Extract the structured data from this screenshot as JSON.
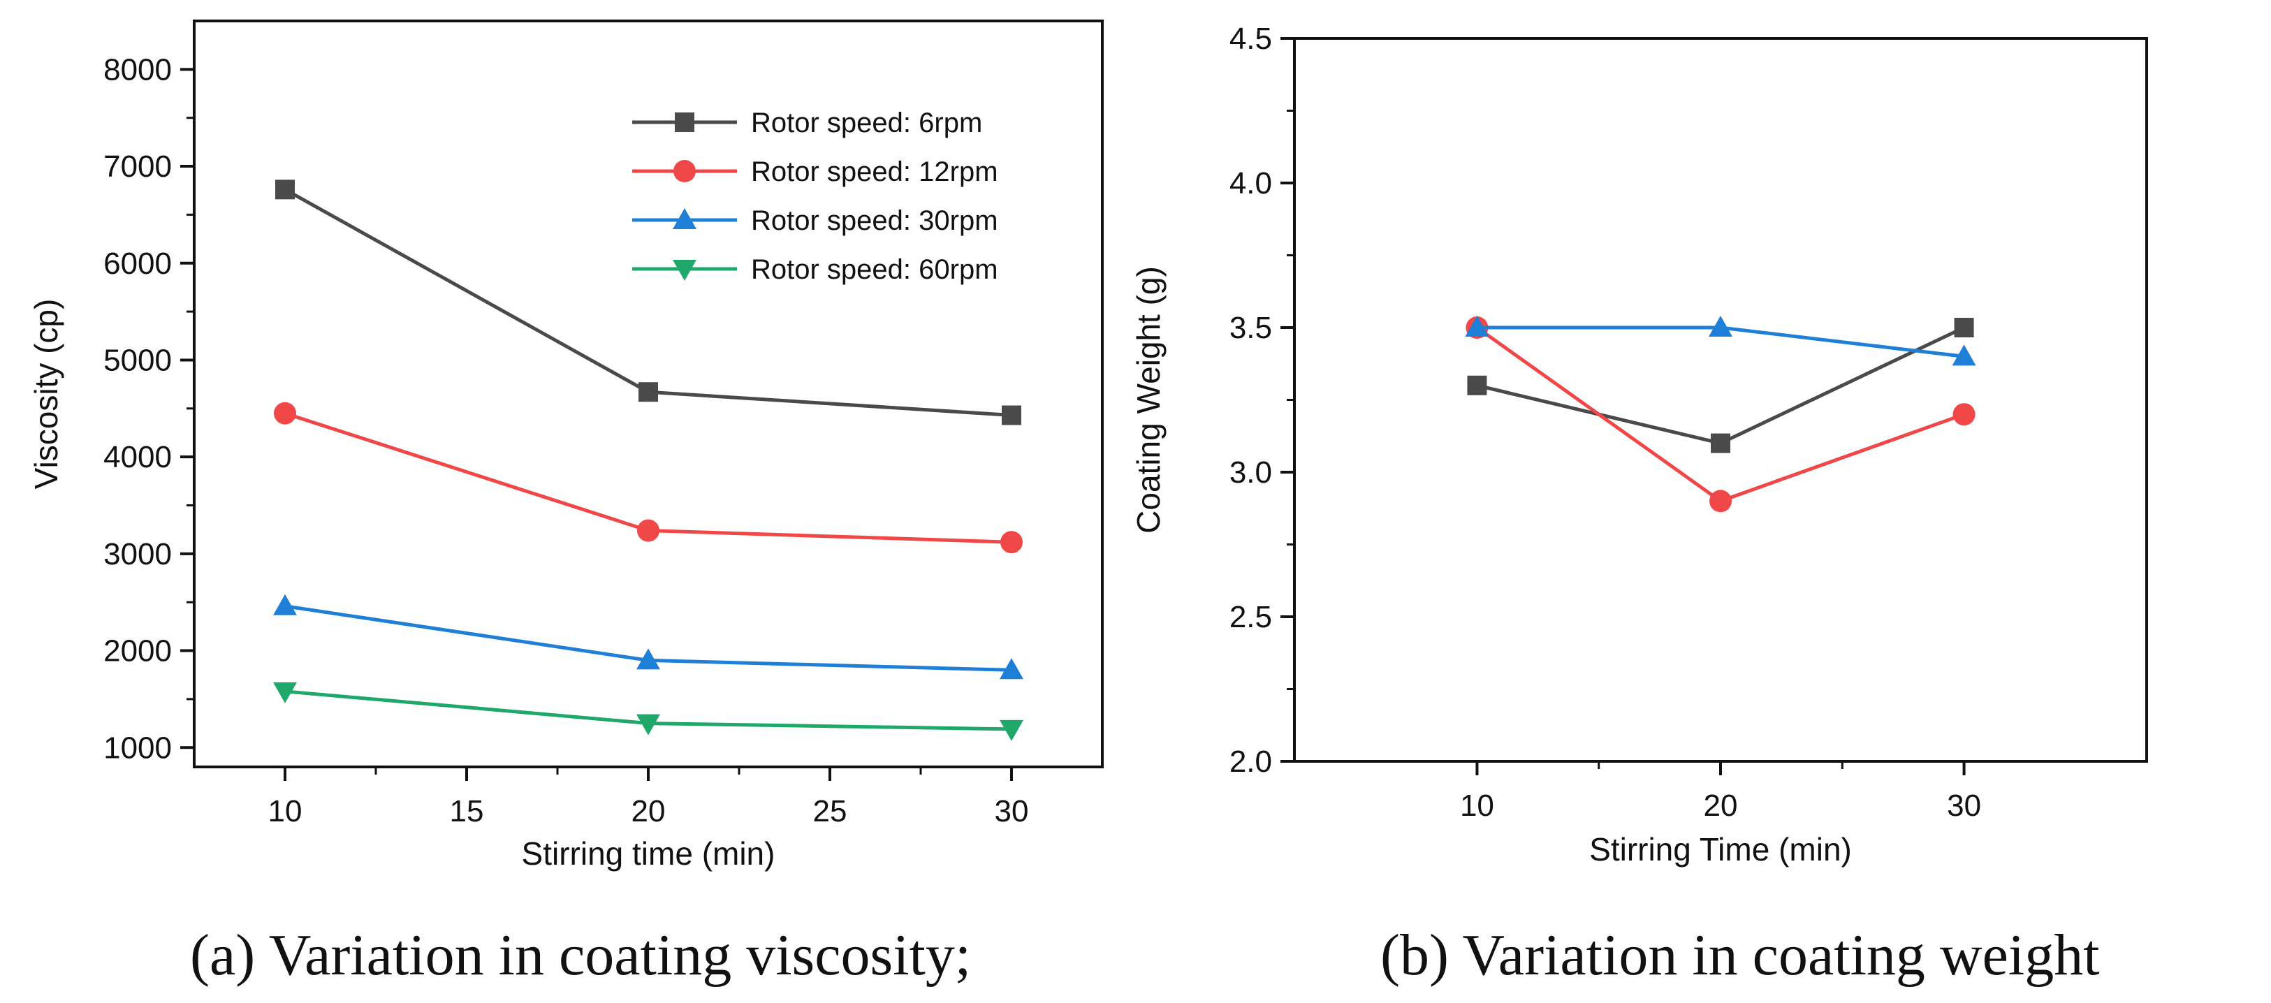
{
  "captions": {
    "a": "(a) Variation in coating viscosity;",
    "b": "(b) Variation in coating weight"
  },
  "chart_data": [
    {
      "id": "a",
      "type": "line",
      "title": "",
      "xlabel": "Stirring time (min)",
      "ylabel": "Viscosity (cp)",
      "xlim": [
        7.5,
        32.5
      ],
      "ylim": [
        800,
        8500
      ],
      "xticks": [
        10,
        15,
        20,
        25,
        30
      ],
      "yticks": [
        1000,
        2000,
        3000,
        4000,
        5000,
        6000,
        7000,
        8000
      ],
      "x": [
        10,
        20,
        30
      ],
      "legend_position": "top-right",
      "series": [
        {
          "name": "Rotor speed: 6rpm",
          "color": "#4a4a4a",
          "marker": "square",
          "values": [
            6760,
            4670,
            4430
          ]
        },
        {
          "name": "Rotor speed: 12rpm",
          "color": "#f04848",
          "marker": "circle",
          "values": [
            4450,
            3240,
            3120
          ]
        },
        {
          "name": "Rotor speed: 30rpm",
          "color": "#1f7fd6",
          "marker": "triangle-up",
          "values": [
            2460,
            1900,
            1800
          ]
        },
        {
          "name": "Rotor speed: 60rpm",
          "color": "#1fa86a",
          "marker": "triangle-down",
          "values": [
            1580,
            1250,
            1190
          ]
        }
      ]
    },
    {
      "id": "b",
      "type": "line",
      "title": "",
      "xlabel": "Stirring Time (min)",
      "ylabel": "Coating Weight (g)",
      "xlim": [
        2.5,
        37.5
      ],
      "ylim": [
        2.0,
        4.5
      ],
      "xticks": [
        10,
        20,
        30
      ],
      "yticks": [
        2.0,
        2.5,
        3.0,
        3.5,
        4.0,
        4.5
      ],
      "ytick_labels": [
        "2.0",
        "2.5",
        "3.0",
        "3.5",
        "4.0",
        "4.5"
      ],
      "x": [
        10,
        20,
        30
      ],
      "series": [
        {
          "name": "Rotor speed: 6rpm",
          "color": "#4a4a4a",
          "marker": "square",
          "values": [
            3.3,
            3.1,
            3.5
          ]
        },
        {
          "name": "Rotor speed: 12rpm",
          "color": "#f04848",
          "marker": "circle",
          "values": [
            3.5,
            2.9,
            3.2
          ]
        },
        {
          "name": "Rotor speed: 30rpm",
          "color": "#1f7fd6",
          "marker": "triangle-up",
          "values": [
            3.5,
            3.5,
            3.4
          ]
        }
      ]
    }
  ]
}
